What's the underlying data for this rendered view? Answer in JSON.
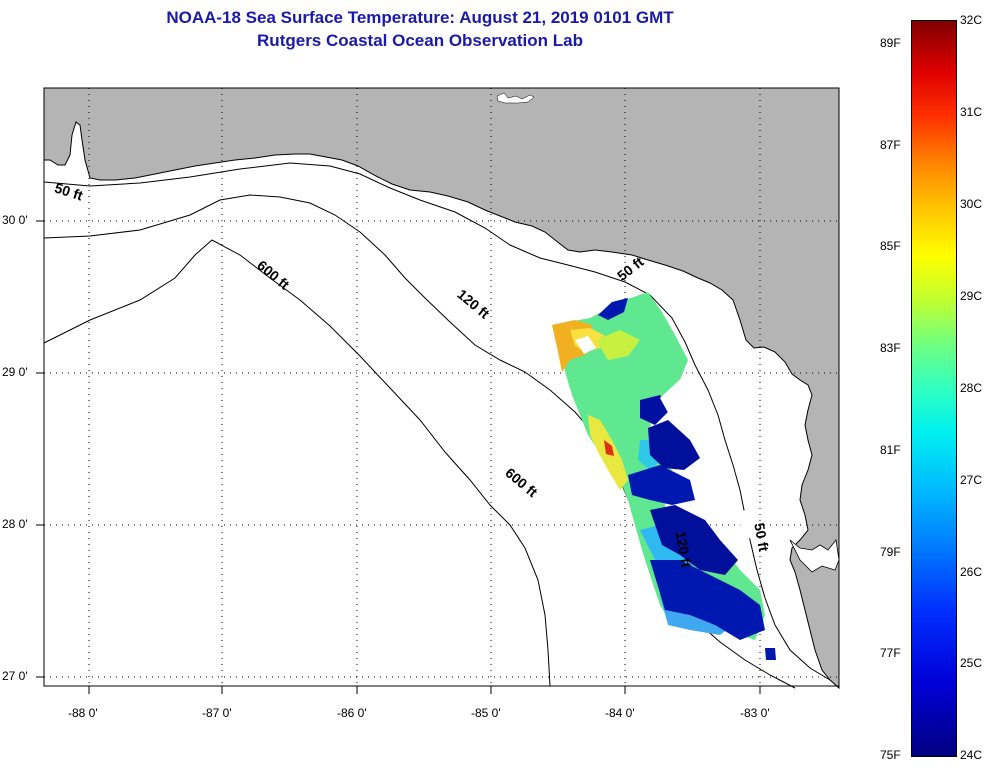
{
  "title": {
    "line1": "NOAA-18 Sea Surface Temperature:  August 21, 2019 0101 GMT",
    "line2": "Rutgers Coastal Ocean Observation Lab"
  },
  "map": {
    "region": "Eastern Gulf of Mexico / West Florida Shelf",
    "colors": {
      "land": "#b4b4b4",
      "water": "#ffffff",
      "coastline": "#000000",
      "grid": "#000000"
    },
    "lon_labels": [
      "-88 0'",
      "-87 0'",
      "-86 0'",
      "-85 0'",
      "-84 0'",
      "-83 0'"
    ],
    "lat_labels": [
      "30 0'",
      "29 0'",
      "28 0'",
      "27 0'"
    ],
    "lon_range": [
      -88.3,
      -82.5
    ],
    "lat_range": [
      26.93,
      30.85
    ],
    "contour_labels": [
      {
        "text": "50 ft",
        "lon": -88.13,
        "lat": 30.14
      },
      {
        "text": "600 ft",
        "lon": -86.65,
        "lat": 29.6
      },
      {
        "text": "120 ft",
        "lon": -85.19,
        "lat": 29.41
      },
      {
        "text": "50 ft",
        "lon": -84.0,
        "lat": 29.64
      },
      {
        "text": "600 ft",
        "lon": -84.84,
        "lat": 28.24
      },
      {
        "text": "50 ft",
        "lon": -83.1,
        "lat": 27.9
      },
      {
        "text": "120 ft",
        "lon": -83.67,
        "lat": 27.82
      }
    ]
  },
  "colorbar": {
    "celsius_labels": [
      "32C",
      "31C",
      "30C",
      "29C",
      "28C",
      "27C",
      "26C",
      "25C",
      "24C"
    ],
    "fahrenheit_labels": [
      "89F",
      "87F",
      "85F",
      "83F",
      "81F",
      "79F",
      "77F",
      "75F"
    ],
    "celsius_range": [
      24,
      32
    ],
    "fahrenheit_values": [
      89,
      87,
      85,
      83,
      81,
      79,
      77,
      75
    ],
    "colors": [
      "#000080",
      "#0000ff",
      "#0080ff",
      "#00ffff",
      "#80ff80",
      "#ffff00",
      "#ff8000",
      "#ff0000",
      "#800000"
    ]
  }
}
